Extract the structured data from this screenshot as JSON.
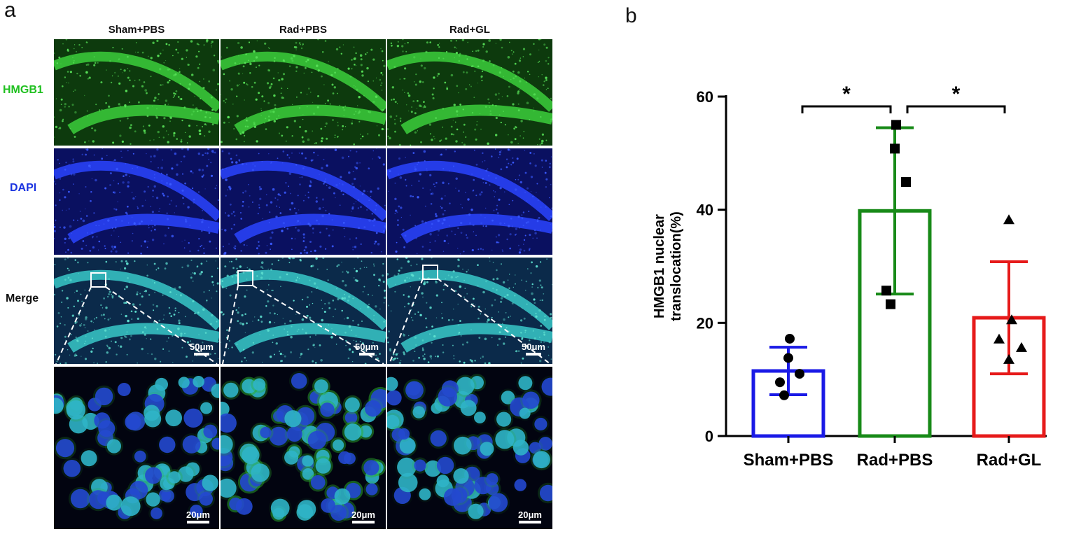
{
  "panel_a": {
    "letter": "a",
    "columns": [
      "Sham+PBS",
      "Rad+PBS",
      "Rad+GL"
    ],
    "rows": [
      {
        "label": "HMGB1",
        "color": "#20c020",
        "kind": "hmgb1"
      },
      {
        "label": "DAPI",
        "color": "#1a33e0",
        "kind": "dapi"
      },
      {
        "label": "Merge",
        "color": "#111111",
        "kind": "merge"
      },
      {
        "label": "",
        "color": "#111111",
        "kind": "zoom"
      }
    ],
    "scale_low": "50μm",
    "scale_high": "20μm"
  },
  "panel_b": {
    "letter": "b"
  },
  "chart_data": {
    "type": "bar",
    "categories": [
      "Sham+PBS",
      "Rad+PBS",
      "Rad+GL"
    ],
    "ylabel": "HMGB1 nuclear translocation(%)",
    "ylabel_lines": [
      "HMGB1 nuclear",
      "translocation(%)"
    ],
    "ylim": [
      0,
      60
    ],
    "yticks": [
      0,
      20,
      40,
      60
    ],
    "series": [
      {
        "values": [
          11.5,
          39.8,
          20.9
        ],
        "sd": [
          4.2,
          14.7,
          9.9
        ]
      }
    ],
    "colors": [
      "#1a1ae6",
      "#188a18",
      "#e61a1a"
    ],
    "markers": [
      "circle",
      "square",
      "triangle"
    ],
    "points": [
      [
        17.2,
        13.8,
        11.0,
        9.5,
        7.2
      ],
      [
        55.0,
        50.8,
        44.9,
        25.7,
        23.3
      ],
      [
        38.2,
        20.5,
        17.1,
        15.6,
        13.5
      ]
    ],
    "significance": [
      {
        "from": 0,
        "to": 1,
        "label": "*"
      },
      {
        "from": 1,
        "to": 2,
        "label": "*"
      }
    ]
  }
}
